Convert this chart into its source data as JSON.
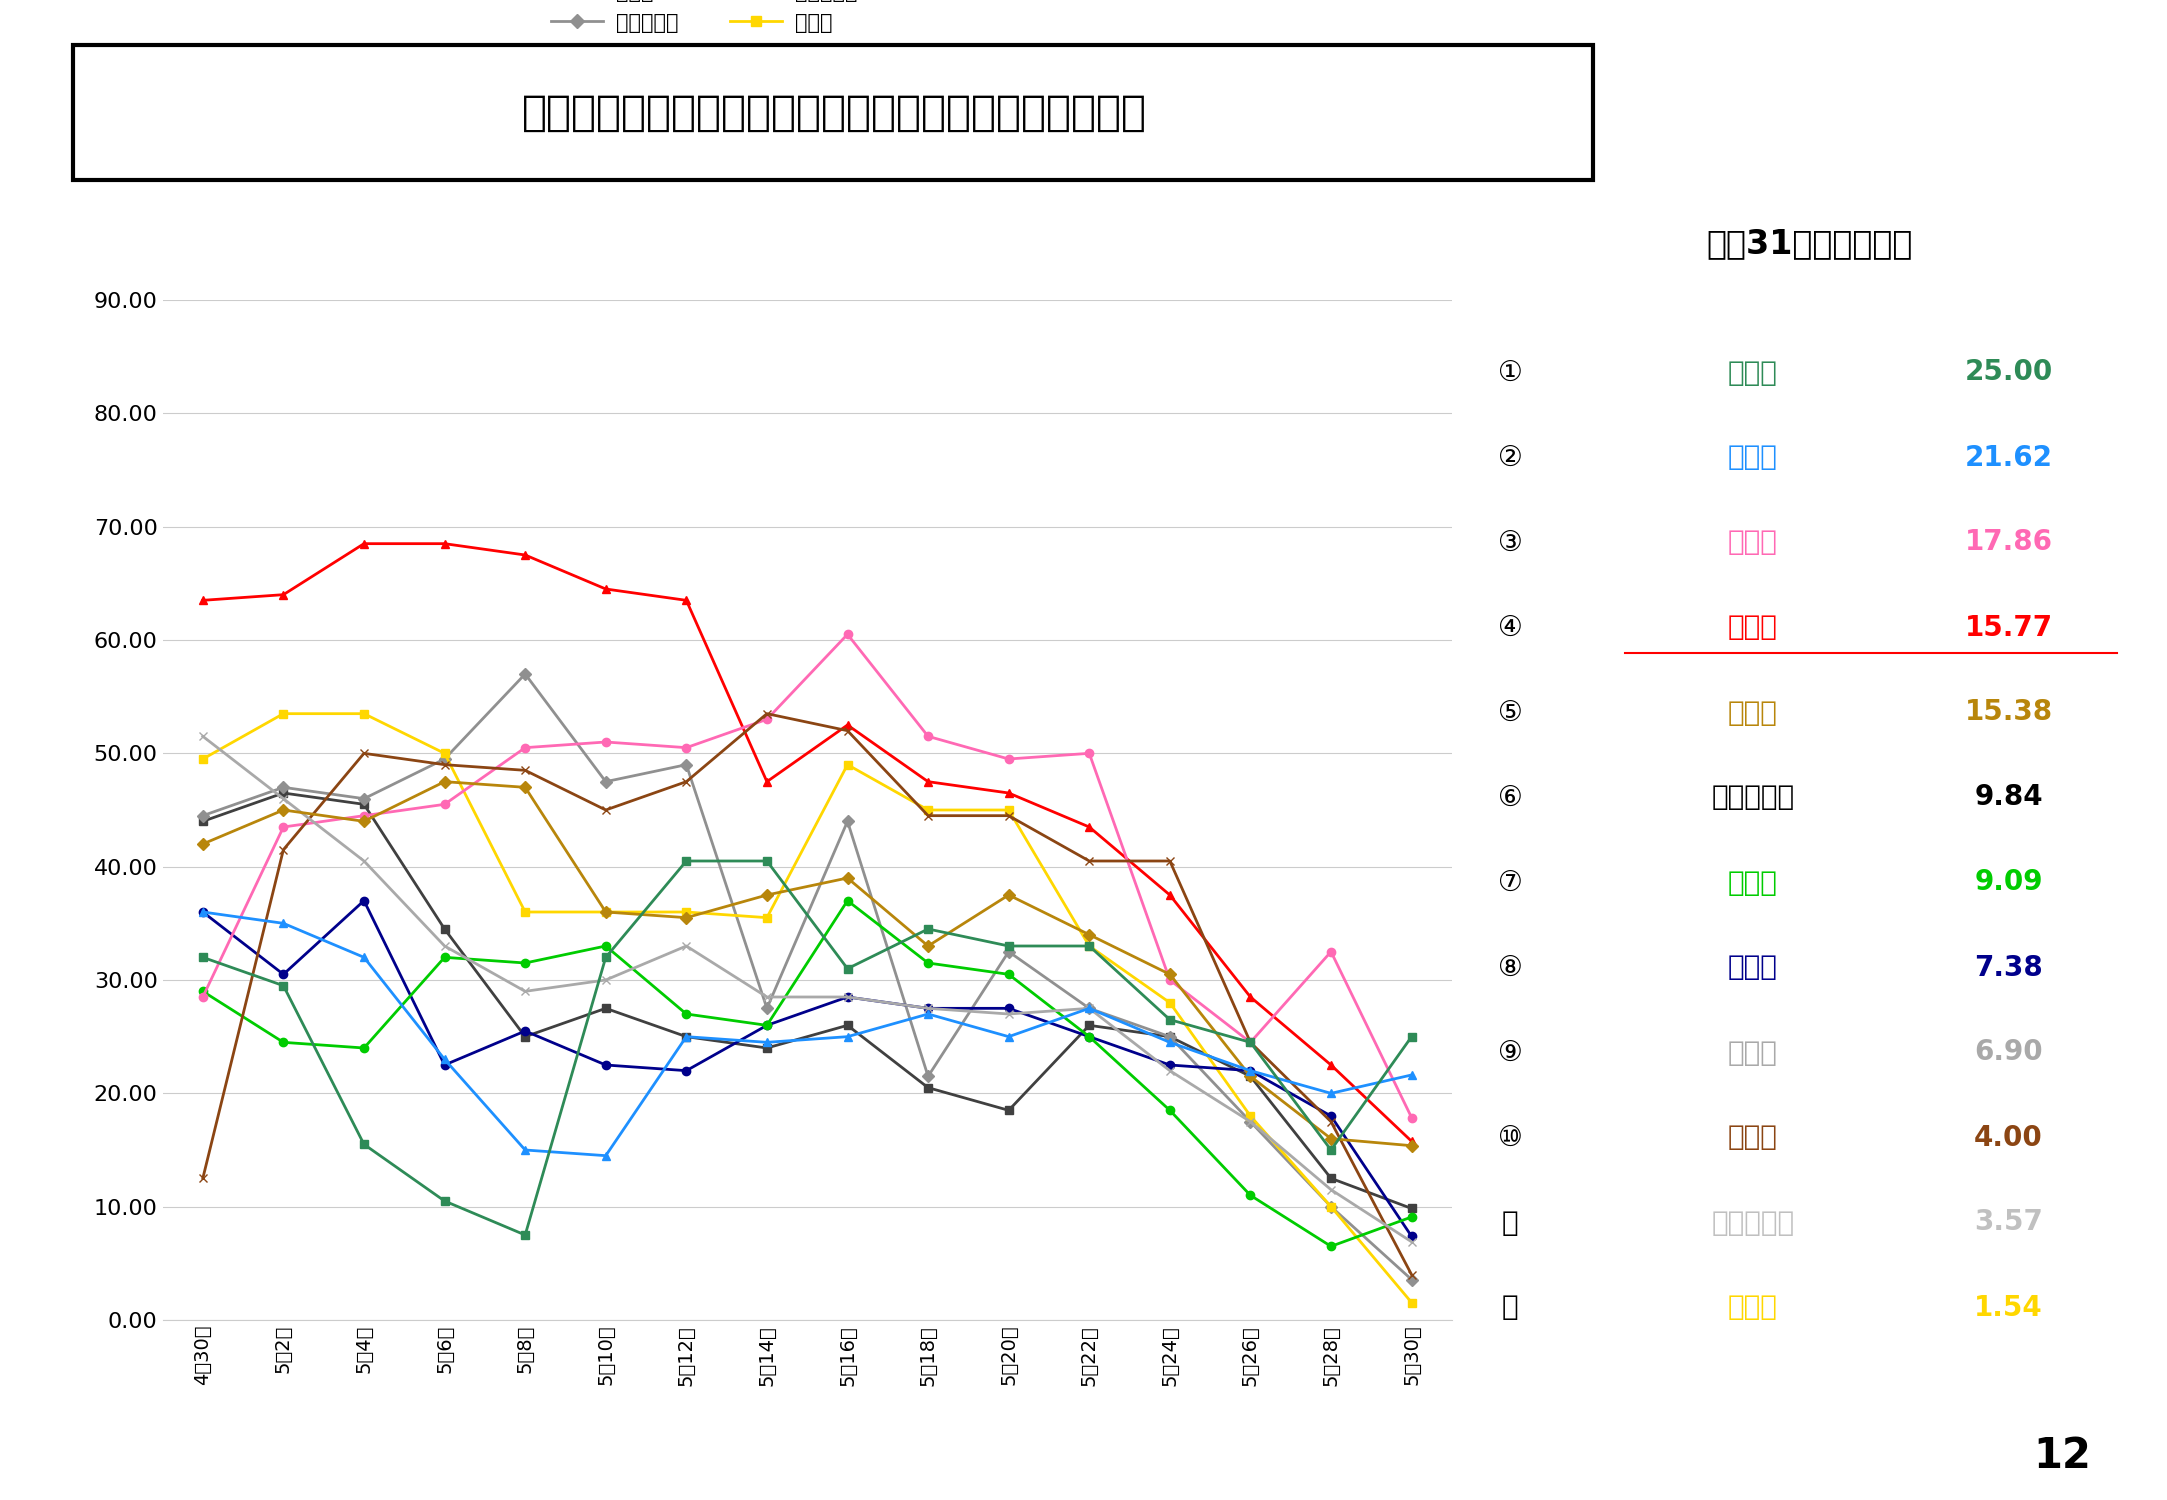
{
  "title": "県内１２市の直近１週間の１０万人当たり陽性者数推移",
  "subtitle": "５月31日（月）時点",
  "xlabel_dates": [
    "4月30日",
    "5月2日",
    "5月4日",
    "5月6日",
    "5月8日",
    "5月10日",
    "5月12日",
    "5月14日",
    "5月16日",
    "5月18日",
    "5月20日",
    "5月22日",
    "5月24日",
    "5月26日",
    "5月28日",
    "5月30日"
  ],
  "ylim": [
    0.0,
    90.0
  ],
  "yticks": [
    0.0,
    10.0,
    20.0,
    30.0,
    40.0,
    50.0,
    60.0,
    70.0,
    80.0,
    90.0
  ],
  "series": {
    "奈良市": {
      "color": "#FF0000",
      "marker": "^",
      "linewidth": 2.0,
      "values": [
        63.5,
        64.0,
        68.5,
        68.5,
        67.5,
        64.5,
        63.5,
        47.5,
        52.5,
        47.5,
        46.5,
        43.5,
        37.5,
        28.5,
        22.5,
        15.77
      ]
    },
    "大和高田市": {
      "color": "#404040",
      "marker": "s",
      "linewidth": 2.0,
      "values": [
        44.0,
        46.5,
        45.5,
        34.5,
        25.0,
        27.5,
        25.0,
        24.0,
        26.0,
        20.5,
        18.5,
        26.0,
        25.0,
        21.5,
        12.5,
        9.84
      ]
    },
    "大和郡山市": {
      "color": "#909090",
      "marker": "D",
      "linewidth": 2.0,
      "values": [
        44.5,
        47.0,
        46.0,
        49.5,
        57.0,
        47.5,
        49.0,
        27.5,
        44.0,
        21.5,
        32.5,
        27.5,
        25.0,
        17.5,
        10.0,
        3.57
      ]
    },
    "天理市": {
      "color": "#FFD700",
      "marker": "s",
      "linewidth": 2.0,
      "values": [
        49.5,
        53.5,
        53.5,
        50.0,
        36.0,
        36.0,
        36.0,
        35.5,
        49.0,
        45.0,
        45.0,
        33.0,
        28.0,
        18.0,
        10.0,
        1.54
      ]
    },
    "橿原市": {
      "color": "#00008B",
      "marker": "o",
      "linewidth": 2.0,
      "values": [
        36.0,
        30.5,
        37.0,
        22.5,
        25.5,
        22.5,
        22.0,
        26.0,
        28.5,
        27.5,
        27.5,
        25.0,
        22.5,
        22.0,
        18.0,
        7.38
      ]
    },
    "桜井市": {
      "color": "#00CC00",
      "marker": "o",
      "linewidth": 2.0,
      "values": [
        29.0,
        24.5,
        24.0,
        32.0,
        31.5,
        33.0,
        27.0,
        26.0,
        37.0,
        31.5,
        30.5,
        25.0,
        18.5,
        11.0,
        6.5,
        9.09
      ]
    },
    "五條市": {
      "color": "#FF69B4",
      "marker": "o",
      "linewidth": 2.0,
      "values": [
        28.5,
        43.5,
        44.5,
        45.5,
        50.5,
        51.0,
        50.5,
        53.0,
        60.5,
        51.5,
        49.5,
        50.0,
        30.0,
        24.5,
        32.5,
        17.86
      ]
    },
    "御所市": {
      "color": "#8B4513",
      "marker": "x",
      "linewidth": 2.0,
      "values": [
        12.5,
        41.5,
        50.0,
        49.0,
        48.5,
        45.0,
        47.5,
        53.5,
        52.0,
        44.5,
        44.5,
        40.5,
        40.5,
        24.5,
        17.5,
        4.0
      ]
    },
    "生駒市": {
      "color": "#A9A9A9",
      "marker": "x",
      "linewidth": 2.0,
      "values": [
        51.5,
        46.0,
        40.5,
        33.0,
        29.0,
        30.0,
        33.0,
        28.5,
        28.5,
        27.5,
        27.0,
        27.5,
        22.0,
        17.5,
        11.5,
        6.9
      ]
    },
    "香芝市": {
      "color": "#B8860B",
      "marker": "D",
      "linewidth": 2.0,
      "values": [
        42.0,
        45.0,
        44.0,
        47.5,
        47.0,
        36.0,
        35.5,
        37.5,
        39.0,
        33.0,
        37.5,
        34.0,
        30.5,
        21.5,
        16.0,
        15.38
      ]
    },
    "葛城市": {
      "color": "#1E90FF",
      "marker": "^",
      "linewidth": 2.0,
      "values": [
        36.0,
        35.0,
        32.0,
        23.0,
        15.0,
        14.5,
        25.0,
        24.5,
        25.0,
        27.0,
        25.0,
        27.5,
        24.5,
        22.0,
        20.0,
        21.62
      ]
    },
    "宇陀市": {
      "color": "#2E8B57",
      "marker": "s",
      "linewidth": 2.0,
      "values": [
        32.0,
        29.5,
        15.5,
        10.5,
        7.5,
        32.0,
        40.5,
        40.5,
        31.0,
        34.5,
        33.0,
        33.0,
        26.5,
        24.5,
        15.0,
        25.0
      ]
    }
  },
  "legend_left": [
    "奈良市",
    "大和郡山市",
    "橿原市",
    "五條市",
    "生駒市",
    "葛城市"
  ],
  "legend_right": [
    "大和高田市",
    "天理市",
    "桜井市",
    "御所市",
    "香芝市",
    "宇陀市"
  ],
  "ranking": [
    {
      "rank": "①",
      "name": "宇陀市",
      "value": "25.00",
      "color": "#2E8B57",
      "underline": false
    },
    {
      "rank": "②",
      "name": "葛城市",
      "value": "21.62",
      "color": "#1E90FF",
      "underline": false
    },
    {
      "rank": "③",
      "name": "五條市",
      "value": "17.86",
      "color": "#FF69B4",
      "underline": false
    },
    {
      "rank": "④",
      "name": "奈良市",
      "value": "15.77",
      "color": "#FF0000",
      "underline": true
    },
    {
      "rank": "⑤",
      "name": "香芝市",
      "value": "15.38",
      "color": "#B8860B",
      "underline": false
    },
    {
      "rank": "⑥",
      "name": "大和高田市",
      "value": "9.84",
      "color": "#000000",
      "underline": false
    },
    {
      "rank": "⑦",
      "name": "桜井市",
      "value": "9.09",
      "color": "#00CC00",
      "underline": false
    },
    {
      "rank": "⑧",
      "name": "橿原市",
      "value": "7.38",
      "color": "#00008B",
      "underline": false
    },
    {
      "rank": "⑨",
      "name": "生駒市",
      "value": "6.90",
      "color": "#A9A9A9",
      "underline": false
    },
    {
      "rank": "⑩",
      "name": "御所市",
      "value": "4.00",
      "color": "#8B4513",
      "underline": false
    },
    {
      "rank": "⑪",
      "name": "大和郡山市",
      "value": "3.57",
      "color": "#C0C0C0",
      "underline": false
    },
    {
      "rank": "⑫",
      "name": "天理市",
      "value": "1.54",
      "color": "#FFD700",
      "underline": false
    }
  ],
  "background_color": "#FFFFFF",
  "grid_color": "#CCCCCC",
  "title_fontsize": 30,
  "axis_fontsize": 16,
  "legend_fontsize": 15,
  "rank_fontsize": 20
}
